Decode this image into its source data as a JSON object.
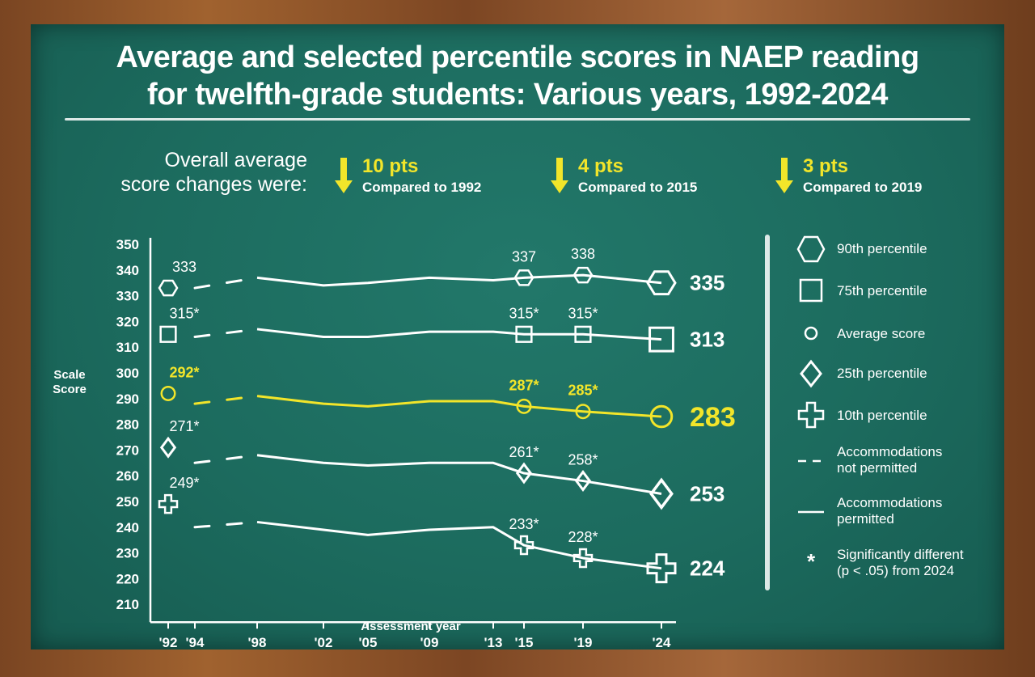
{
  "title_line1": "Average and selected percentile scores in NAEP reading",
  "title_line2": "for twelfth-grade students: Various years, 1992-2024",
  "changes": {
    "intro_line1": "Overall average",
    "intro_line2": "score changes were:",
    "items": [
      {
        "pts": "10 pts",
        "compared": "Compared to 1992"
      },
      {
        "pts": "4 pts",
        "compared": "Compared to 2015"
      },
      {
        "pts": "3 pts",
        "compared": "Compared to 2019"
      }
    ]
  },
  "colors": {
    "board": "#1c6b5e",
    "chalk": "#ffffff",
    "highlight": "#f2e52a",
    "frame": "#8a5329"
  },
  "legend": [
    {
      "icon": "hexagon-icon",
      "label": "90th percentile"
    },
    {
      "icon": "square-icon",
      "label": "75th percentile"
    },
    {
      "icon": "circle-icon",
      "label": "Average score"
    },
    {
      "icon": "diamond-icon",
      "label": "25th percentile"
    },
    {
      "icon": "cross-icon",
      "label": "10th percentile"
    },
    {
      "icon": "dashed-line-icon",
      "label1": "Accommodations",
      "label2": "not permitted"
    },
    {
      "icon": "solid-line-icon",
      "label1": "Accommodations",
      "label2": "permitted"
    },
    {
      "icon": "asterisk-icon",
      "label1": "Significantly different",
      "label2": "(p < .05) from 2024"
    }
  ],
  "chart_data": {
    "type": "line",
    "xlabel": "Assessment year",
    "ylabel1": "Scale",
    "ylabel2": "Score",
    "ylim": [
      210,
      350
    ],
    "y_ticks": [
      350,
      340,
      330,
      320,
      310,
      300,
      290,
      280,
      270,
      260,
      250,
      240,
      230,
      220,
      210
    ],
    "x_tick_labels": [
      "'92",
      "'94",
      "'98",
      "'02",
      "'05",
      "'09",
      "'13",
      "'15",
      "'19",
      "'24"
    ],
    "years": [
      1992,
      1994,
      1998,
      2002,
      2005,
      2009,
      2013,
      2015,
      2019,
      2024
    ],
    "accommodations_not_permitted_years": [
      1992,
      1994,
      1998
    ],
    "series": [
      {
        "name": "90th percentile",
        "marker": "hexagon",
        "highlight": false,
        "values": [
          333,
          333,
          337,
          334,
          335,
          337,
          336,
          337,
          338,
          335
        ],
        "labels": {
          "1992": "333",
          "2015": "337",
          "2019": "338"
        },
        "final_label": "335"
      },
      {
        "name": "75th percentile",
        "marker": "square",
        "highlight": false,
        "values": [
          315,
          314,
          317,
          314,
          314,
          316,
          316,
          315,
          315,
          313
        ],
        "labels": {
          "1992": "315*",
          "2015": "315*",
          "2019": "315*"
        },
        "final_label": "313"
      },
      {
        "name": "Average score",
        "marker": "circle",
        "highlight": true,
        "values": [
          292,
          288,
          291,
          288,
          287,
          289,
          289,
          287,
          285,
          283
        ],
        "labels": {
          "1992": "292*",
          "2015": "287*",
          "2019": "285*"
        },
        "final_label": "283"
      },
      {
        "name": "25th percentile",
        "marker": "diamond",
        "highlight": false,
        "values": [
          271,
          265,
          268,
          265,
          264,
          265,
          265,
          261,
          258,
          253
        ],
        "labels": {
          "1992": "271*",
          "2015": "261*",
          "2019": "258*"
        },
        "final_label": "253"
      },
      {
        "name": "10th percentile",
        "marker": "cross",
        "highlight": false,
        "values": [
          249,
          240,
          242,
          239,
          237,
          239,
          240,
          233,
          228,
          224
        ],
        "labels": {
          "1992": "249*",
          "2015": "233*",
          "2019": "228*"
        },
        "final_label": "224"
      }
    ]
  }
}
